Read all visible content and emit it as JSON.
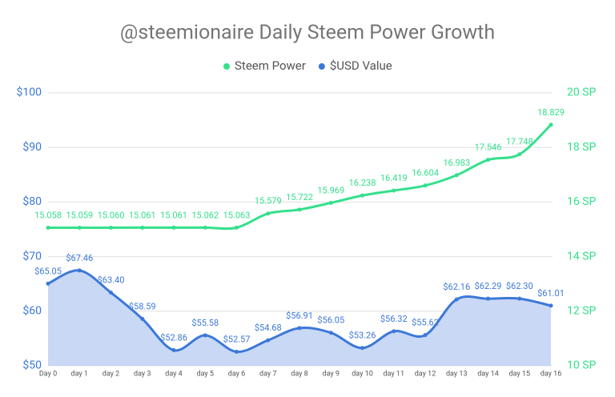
{
  "chart_data": {
    "type": "line",
    "title": "@steemionaire Daily Steem Power Growth",
    "categories": [
      "Day 0",
      "day 1",
      "day 2",
      "day 3",
      "day 4",
      "day 5",
      "day 6",
      "day 7",
      "day 8",
      "day 9",
      "day 10",
      "day 11",
      "day 12",
      "day 13",
      "day 14",
      "day 15",
      "day 16"
    ],
    "series": [
      {
        "name": "Steem Power",
        "color": "#34e08c",
        "axis": "y2",
        "values": [
          15.058,
          15.059,
          15.06,
          15.061,
          15.061,
          15.062,
          15.063,
          15.579,
          15.722,
          15.969,
          16.238,
          16.419,
          16.604,
          16.983,
          17.546,
          17.748,
          18.829
        ],
        "value_labels": [
          "15.058",
          "15.059",
          "15.060",
          "15.061",
          "15.061",
          "15.062",
          "15.063",
          "15.579",
          "15.722",
          "15.969",
          "16.238",
          "16.419",
          "16.604",
          "16.983",
          "17.546",
          "17.748",
          "18.829"
        ]
      },
      {
        "name": "$USD Value",
        "color": "#3c78d8",
        "area": true,
        "area_color": "#c9d8f5",
        "values": [
          65.05,
          67.46,
          63.4,
          58.59,
          52.86,
          55.58,
          52.57,
          54.68,
          56.91,
          56.05,
          53.26,
          56.32,
          55.62,
          62.16,
          62.29,
          62.3,
          61.01
        ],
        "value_labels": [
          "$65.05",
          "$67.46",
          "$63.40",
          "$58.59",
          "$52.86",
          "$55.58",
          "$52.57",
          "$54.68",
          "$56.91",
          "$56.05",
          "$53.26",
          "$56.32",
          "$55.62",
          "$62.16",
          "$62.29",
          "$62.30",
          "$61.01"
        ]
      }
    ],
    "ylim": [
      50,
      100
    ],
    "yticks": [
      {
        "value": 50,
        "label": "$50"
      },
      {
        "value": 60,
        "label": "$60"
      },
      {
        "value": 70,
        "label": "$70"
      },
      {
        "value": 80,
        "label": "$80"
      },
      {
        "value": 90,
        "label": "$90"
      },
      {
        "value": 100,
        "label": "$100"
      }
    ],
    "y2lim": [
      10,
      20
    ],
    "y2ticks": [
      {
        "value": 10,
        "label": "10 SP"
      },
      {
        "value": 12,
        "label": "12 SP"
      },
      {
        "value": 14,
        "label": "14 SP"
      },
      {
        "value": 16,
        "label": "16 SP"
      },
      {
        "value": 18,
        "label": "18 SP"
      },
      {
        "value": 20,
        "label": "20 SP"
      }
    ],
    "grid": true,
    "legend": "top"
  }
}
